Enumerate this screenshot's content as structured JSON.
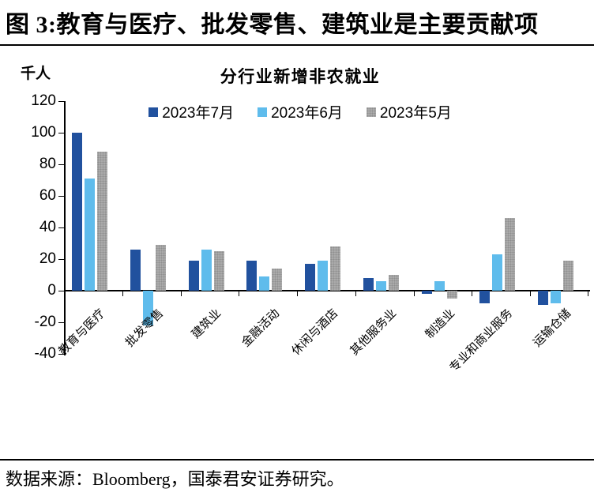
{
  "header": {
    "title": "图 3:教育与医疗、批发零售、建筑业是主要贡献项"
  },
  "footer": {
    "source": "数据来源：Bloomberg，国泰君安证券研究。"
  },
  "chart_data": {
    "type": "bar",
    "title": "分行业新增非农就业",
    "unit_label": "千人",
    "categories": [
      "教育与医疗",
      "批发零售",
      "建筑业",
      "金融活动",
      "休闲与酒店",
      "其他服务业",
      "制造业",
      "专业和商业服务",
      "运输仓储"
    ],
    "series": [
      {
        "name": "2023年7月",
        "color": "#21519E",
        "pattern": "solid",
        "values": [
          100,
          26,
          19,
          19,
          17,
          8,
          -2,
          -8,
          -9
        ]
      },
      {
        "name": "2023年6月",
        "color": "#5FBCEC",
        "pattern": "solid",
        "values": [
          71,
          -22,
          26,
          9,
          19,
          6,
          6,
          23,
          -8
        ]
      },
      {
        "name": "2023年5月",
        "color": "#ABABAB",
        "pattern": "dots",
        "values": [
          88,
          29,
          25,
          14,
          28,
          10,
          -5,
          46,
          19
        ]
      }
    ],
    "ylim": [
      -40,
      120
    ],
    "yticks": [
      120,
      100,
      80,
      60,
      40,
      20,
      0,
      -20,
      -40
    ],
    "legend_position": "top",
    "grid": false,
    "axis_color": "#000000"
  }
}
